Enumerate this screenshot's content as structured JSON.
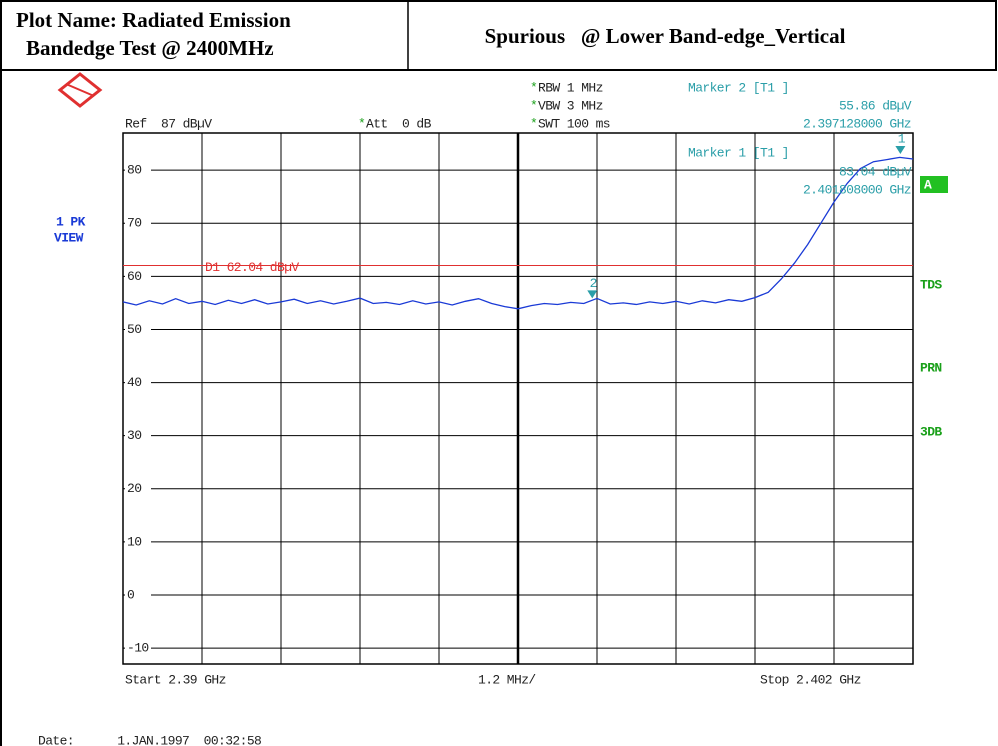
{
  "header": {
    "title_line1": "Plot Name: Radiated Emission",
    "title_line2": "Bandedge Test @ 2400MHz",
    "subtitle": "Spurious   @ Lower Band-edge_Vertical"
  },
  "chart_data": {
    "type": "line",
    "settings": {
      "flag": "*",
      "rbw": "RBW 1 MHz",
      "vbw": "VBW 3 MHz",
      "swt": "SWT 100 ms",
      "ref": "Ref  87 dBµV",
      "att": "Att  0 dB"
    },
    "trace_label": [
      "1 PK",
      "VIEW"
    ],
    "side_labels": {
      "a": "A",
      "tds": "TDS",
      "prn": "PRN",
      "db3": "3DB"
    },
    "x_axis": {
      "start": "Start 2.39 GHz",
      "span": "1.2 MHz/",
      "stop": "Stop 2.402 GHz"
    },
    "date": "Date:      1.JAN.1997  00:32:58",
    "xlim": [
      2.39,
      2.402
    ],
    "xticks": [
      2.39,
      2.3912,
      2.3924,
      2.3936,
      2.3948,
      2.396,
      2.3972,
      2.3984,
      2.3996,
      2.4008,
      2.402
    ],
    "ylim": [
      -13,
      87
    ],
    "yticks": [
      -10,
      0,
      10,
      20,
      30,
      40,
      50,
      60,
      70,
      80
    ],
    "grid": true,
    "display_line": {
      "value": 62.04,
      "label": "D1 62.04 dBµV",
      "color": "#e03030"
    },
    "markers": [
      {
        "id": "1",
        "name": "Marker 1 [T1 ]",
        "x": 2.401808,
        "x_label": "2.401808000 GHz",
        "value": 83.04,
        "value_label": "83.04 dBµV"
      },
      {
        "id": "2",
        "name": "Marker 2 [T1 ]",
        "x": 2.397128,
        "x_label": "2.397128000 GHz",
        "value": 55.86,
        "value_label": "55.86 dBµV"
      }
    ],
    "series": [
      {
        "name": "1 PK",
        "color": "#1a3ad6",
        "x": [
          2.39,
          2.3902,
          2.3904,
          2.3906,
          2.3908,
          2.391,
          2.3912,
          2.3914,
          2.3916,
          2.3918,
          2.392,
          2.3922,
          2.3924,
          2.3926,
          2.3928,
          2.393,
          2.3932,
          2.3934,
          2.3936,
          2.3938,
          2.394,
          2.3942,
          2.3944,
          2.3946,
          2.3948,
          2.395,
          2.3952,
          2.3954,
          2.3956,
          2.3958,
          2.396,
          2.3962,
          2.3964,
          2.3966,
          2.3968,
          2.397,
          2.3972,
          2.3974,
          2.3976,
          2.3978,
          2.398,
          2.3982,
          2.3984,
          2.3986,
          2.3988,
          2.399,
          2.3992,
          2.3994,
          2.3996,
          2.3998,
          2.4,
          2.4002,
          2.4004,
          2.4006,
          2.4008,
          2.401,
          2.4012,
          2.4014,
          2.4016,
          2.4018,
          2.402
        ],
        "values": [
          55.2,
          54.6,
          55.4,
          54.8,
          55.8,
          54.9,
          55.3,
          54.7,
          55.5,
          54.9,
          55.6,
          54.8,
          55.2,
          55.7,
          54.9,
          55.4,
          54.8,
          55.3,
          55.9,
          54.9,
          55.1,
          54.7,
          55.4,
          54.8,
          55.2,
          54.6,
          55.3,
          55.8,
          54.9,
          54.3,
          53.9,
          54.5,
          54.9,
          54.7,
          55.1,
          54.9,
          55.86,
          54.8,
          55.0,
          54.7,
          55.2,
          54.9,
          55.3,
          54.8,
          55.4,
          55.0,
          55.6,
          55.3,
          56.0,
          57.0,
          59.5,
          62.5,
          66.0,
          70.0,
          74.0,
          77.5,
          80.3,
          81.6,
          82.0,
          82.4,
          82.1
        ]
      }
    ]
  }
}
